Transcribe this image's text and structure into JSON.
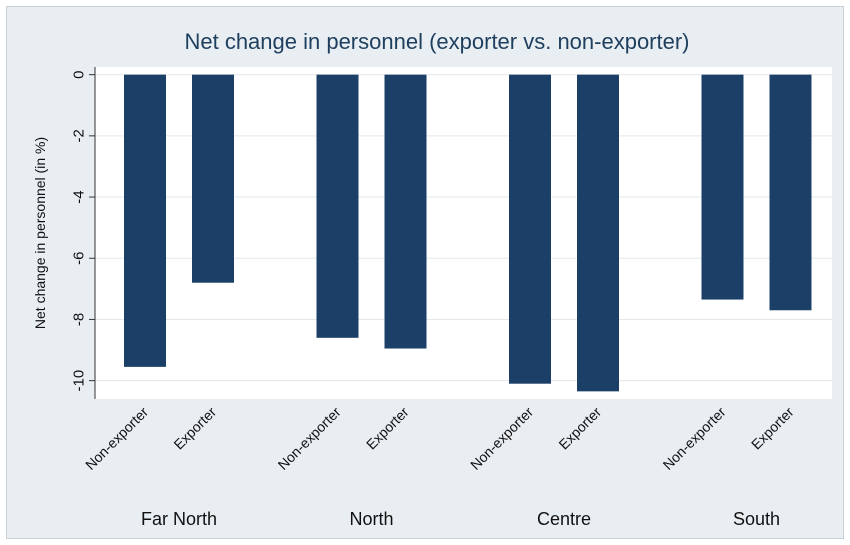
{
  "chart_data": {
    "type": "bar",
    "title": "Net change in personnel (exporter vs. non-exporter)",
    "ylabel": "Net change in personnel (in %)",
    "xlabel": "",
    "ylim": [
      -10.6,
      0.25
    ],
    "yticks": [
      0,
      -2,
      -4,
      -6,
      -8,
      -10
    ],
    "grid": true,
    "groups": [
      {
        "label": "Far North",
        "bars": [
          {
            "category": "Non-exporter",
            "value": -9.55
          },
          {
            "category": "Exporter",
            "value": -6.8
          }
        ]
      },
      {
        "label": "North",
        "bars": [
          {
            "category": "Non-exporter",
            "value": -8.6
          },
          {
            "category": "Exporter",
            "value": -8.95
          }
        ]
      },
      {
        "label": "Centre",
        "bars": [
          {
            "category": "Non-exporter",
            "value": -10.1
          },
          {
            "category": "Exporter",
            "value": -10.35
          }
        ]
      },
      {
        "label": "South",
        "bars": [
          {
            "category": "Non-exporter",
            "value": -7.35
          },
          {
            "category": "Exporter",
            "value": -7.7
          }
        ]
      }
    ],
    "colors": {
      "bar": "#1b3f66",
      "plot_bg": "#ffffff",
      "grid": "#e3e8ed",
      "frame_bg": "#e9eef2"
    }
  }
}
